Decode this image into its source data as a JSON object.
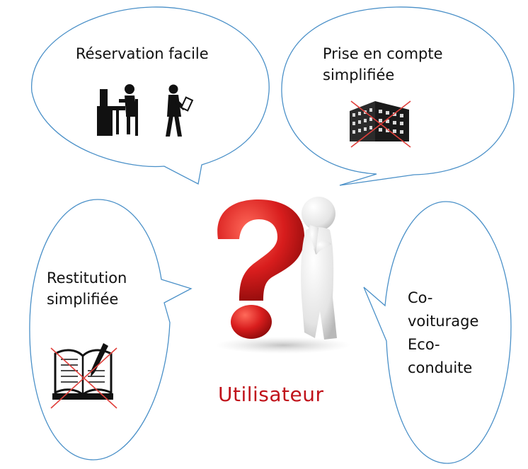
{
  "bubbles": {
    "top_left": {
      "line1": "Réservation facile"
    },
    "top_right": {
      "line1": "Prise en compte",
      "line2": "simplifiée"
    },
    "left": {
      "line1": "Restitution",
      "line2": "simplifiée"
    },
    "right": {
      "line1": "Co-",
      "line2": "voiturage",
      "line3": "Eco-",
      "line4": "conduite"
    }
  },
  "center": {
    "title": "Utilisateur"
  },
  "icons": {
    "top_left": [
      "person-at-desk-icon",
      "walking-person-with-phone-icon"
    ],
    "top_right": "crossed-out-building-icon",
    "left": "crossed-out-book-with-pen-icon",
    "center": "thinking-figure-with-question-mark-icon"
  },
  "colors": {
    "bubble_stroke": "#4a90c8",
    "title": "#c0121a",
    "cross": "#e0403c",
    "question_mark": "#d81d1d"
  }
}
